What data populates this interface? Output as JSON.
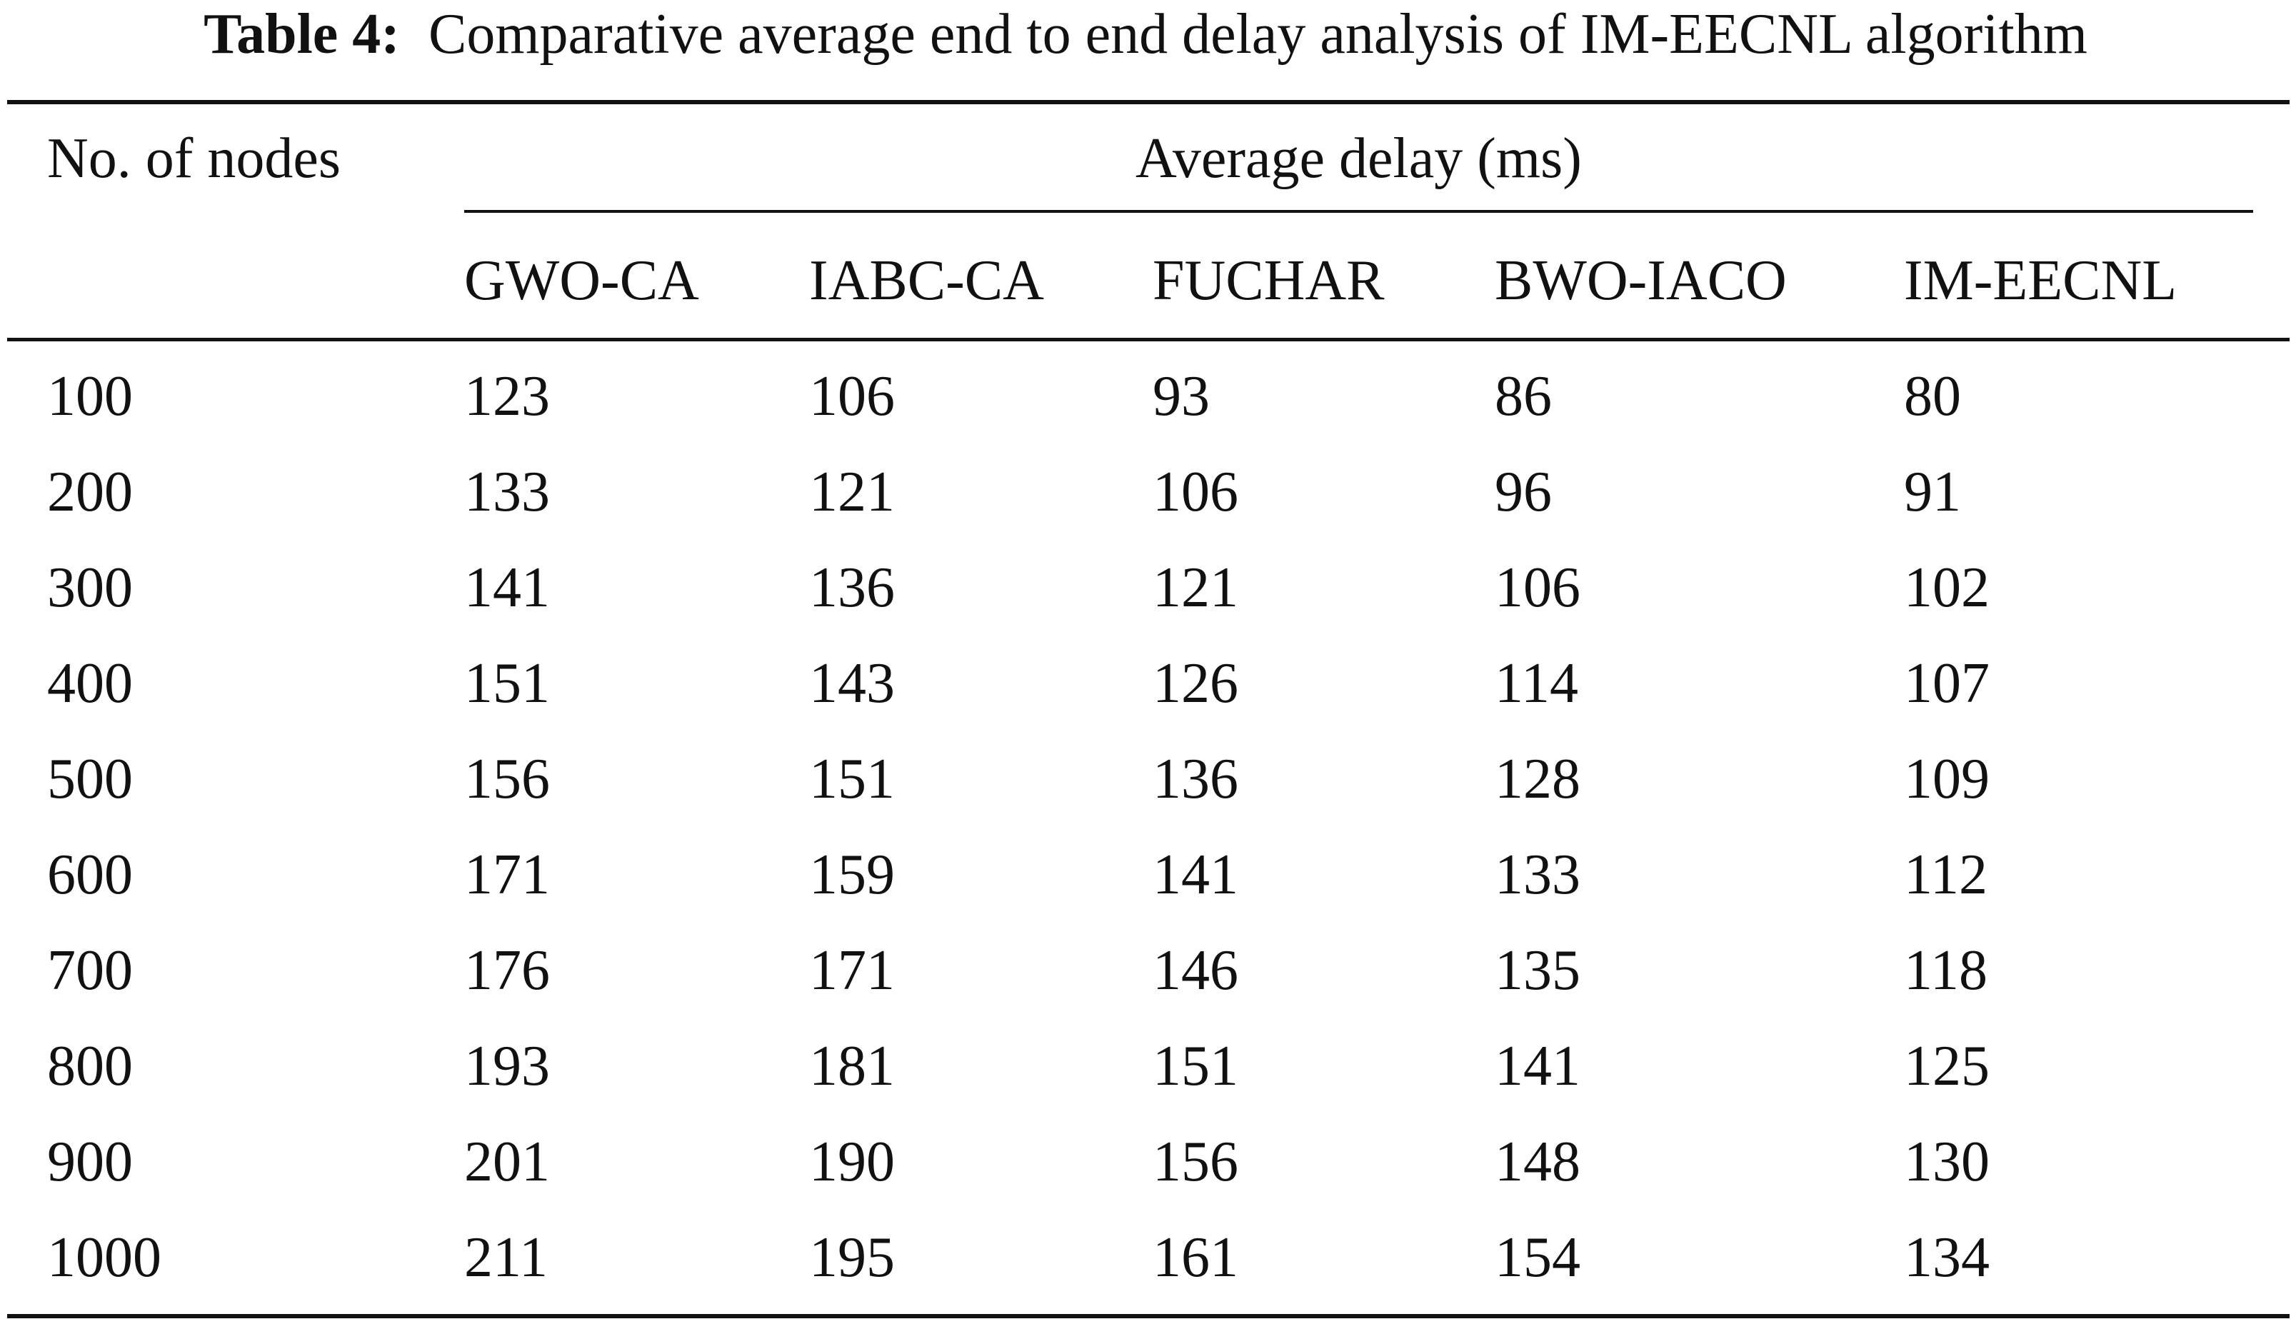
{
  "caption": {
    "label": "Table 4:",
    "text": "Comparative average end to end delay analysis of IM-EECNL algorithm"
  },
  "table": {
    "first_header": "No. of nodes",
    "group_header": "Average delay (ms)",
    "columns": [
      "GWO-CA",
      "IABC-CA",
      "FUCHAR",
      "BWO-IACO",
      "IM-EECNL"
    ],
    "rows": [
      {
        "nodes": "100",
        "values": [
          "123",
          "106",
          "93",
          "86",
          "80"
        ]
      },
      {
        "nodes": "200",
        "values": [
          "133",
          "121",
          "106",
          "96",
          "91"
        ]
      },
      {
        "nodes": "300",
        "values": [
          "141",
          "136",
          "121",
          "106",
          "102"
        ]
      },
      {
        "nodes": "400",
        "values": [
          "151",
          "143",
          "126",
          "114",
          "107"
        ]
      },
      {
        "nodes": "500",
        "values": [
          "156",
          "151",
          "136",
          "128",
          "109"
        ]
      },
      {
        "nodes": "600",
        "values": [
          "171",
          "159",
          "141",
          "133",
          "112"
        ]
      },
      {
        "nodes": "700",
        "values": [
          "176",
          "171",
          "146",
          "135",
          "118"
        ]
      },
      {
        "nodes": "800",
        "values": [
          "193",
          "181",
          "151",
          "141",
          "125"
        ]
      },
      {
        "nodes": "900",
        "values": [
          "201",
          "190",
          "156",
          "148",
          "130"
        ]
      },
      {
        "nodes": "1000",
        "values": [
          "211",
          "195",
          "161",
          "154",
          "134"
        ]
      }
    ]
  }
}
